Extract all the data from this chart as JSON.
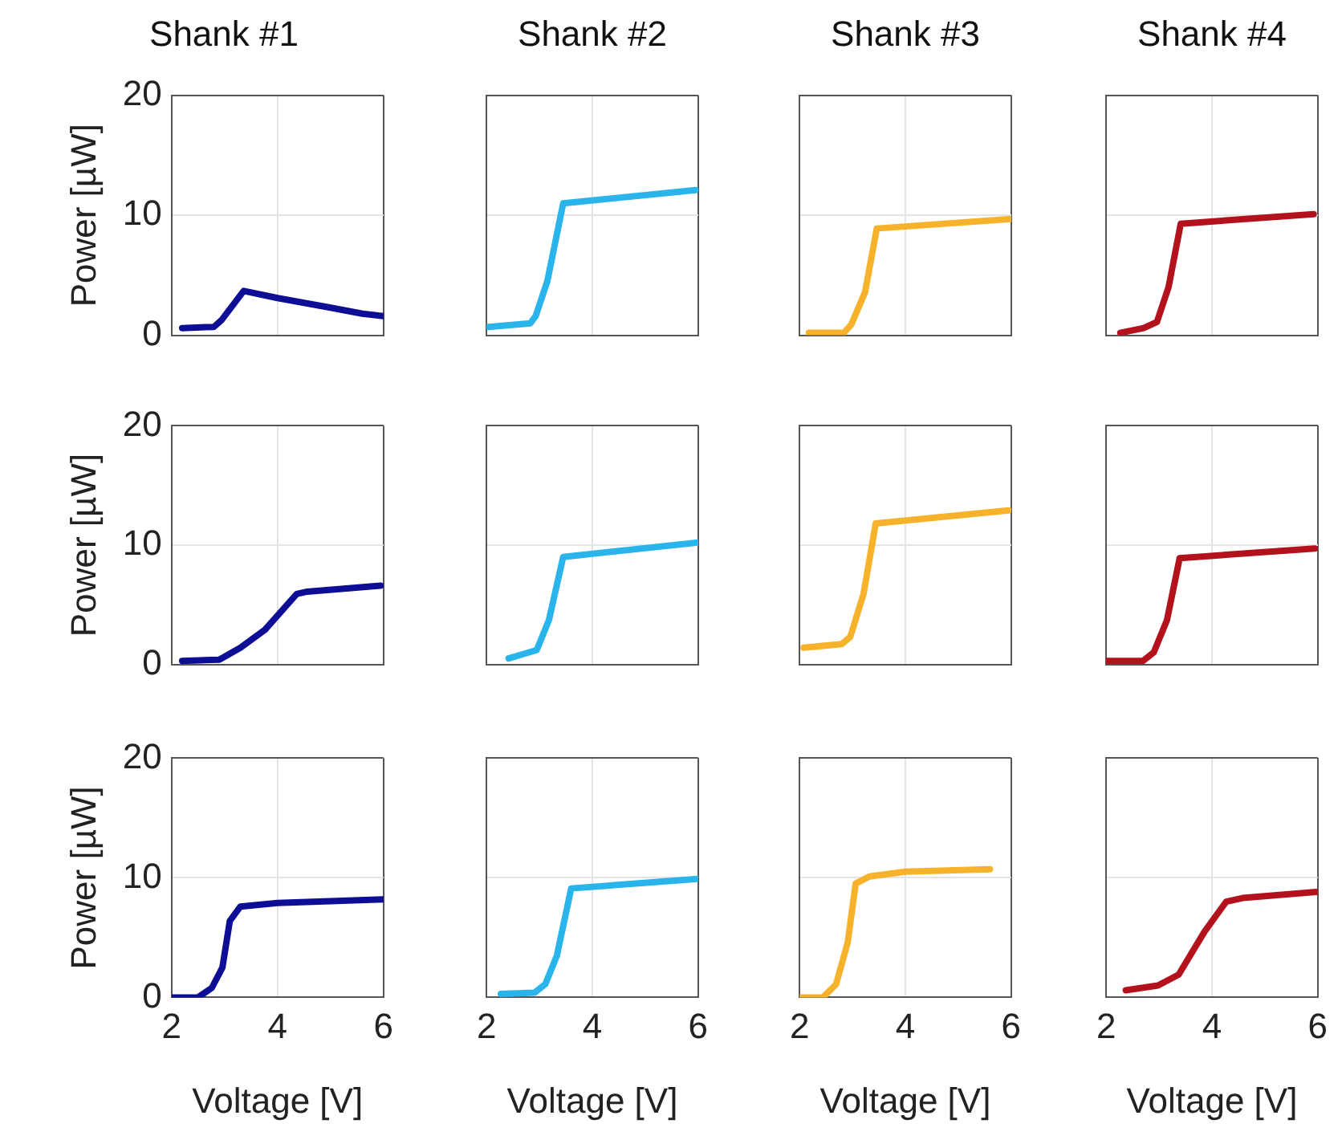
{
  "chart_data": [
    {
      "type": "line",
      "title": "Shank #1",
      "ylabel": "Power [µW]",
      "xlim": [
        2,
        6
      ],
      "ylim": [
        0,
        20
      ],
      "xticks": [
        2,
        4,
        6
      ],
      "yticks": [
        0,
        10,
        20
      ],
      "grid": true,
      "tick_labels": "y",
      "series": [
        {
          "color": "#0d0d96",
          "x": [
            2.2,
            2.8,
            2.95,
            3.36,
            4,
            5,
            5.6,
            6
          ],
          "values": [
            0.6,
            0.7,
            1.3,
            3.7,
            3.1,
            2.3,
            1.8,
            1.6
          ]
        }
      ]
    },
    {
      "type": "line",
      "title": "Shank #2",
      "xlim": [
        2,
        6
      ],
      "ylim": [
        0,
        20
      ],
      "xticks": [
        2,
        4,
        6
      ],
      "yticks": [
        0,
        10,
        20
      ],
      "grid": true,
      "tick_labels": false,
      "series": [
        {
          "color": "#2ab4ec",
          "x": [
            2.04,
            2.83,
            2.93,
            3.15,
            3.45,
            5.95
          ],
          "values": [
            0.7,
            1.0,
            1.6,
            4.5,
            11.0,
            12.1
          ]
        }
      ]
    },
    {
      "type": "line",
      "title": "Shank #3",
      "xlim": [
        2,
        6
      ],
      "ylim": [
        0,
        20
      ],
      "xticks": [
        2,
        4,
        6
      ],
      "yticks": [
        0,
        10,
        20
      ],
      "grid": true,
      "tick_labels": false,
      "series": [
        {
          "color": "#f7b22c",
          "x": [
            2.18,
            2.84,
            2.98,
            3.24,
            3.46,
            6
          ],
          "values": [
            0.2,
            0.2,
            0.9,
            3.6,
            8.9,
            9.7
          ]
        }
      ]
    },
    {
      "type": "line",
      "title": "Shank #4",
      "xlim": [
        2,
        6
      ],
      "ylim": [
        0,
        20
      ],
      "xticks": [
        2,
        4,
        6
      ],
      "yticks": [
        0,
        10,
        20
      ],
      "grid": true,
      "tick_labels": false,
      "series": [
        {
          "color": "#b3121d",
          "x": [
            2.27,
            2.71,
            2.96,
            3.18,
            3.41,
            5.92
          ],
          "values": [
            0.2,
            0.6,
            1.1,
            4.0,
            9.3,
            10.1
          ]
        }
      ]
    },
    {
      "type": "line",
      "ylabel": "Power [µW]",
      "xlim": [
        2,
        6
      ],
      "ylim": [
        0,
        20
      ],
      "xticks": [
        2,
        4,
        6
      ],
      "yticks": [
        0,
        10,
        20
      ],
      "grid": true,
      "tick_labels": "y",
      "series": [
        {
          "color": "#0d0d96",
          "x": [
            2.2,
            2.9,
            3.3,
            3.76,
            4.36,
            4.56,
            5.94
          ],
          "values": [
            0.3,
            0.4,
            1.4,
            2.9,
            5.9,
            6.1,
            6.6
          ]
        }
      ]
    },
    {
      "type": "line",
      "xlim": [
        2,
        6
      ],
      "ylim": [
        0,
        20
      ],
      "xticks": [
        2,
        4,
        6
      ],
      "yticks": [
        0,
        10,
        20
      ],
      "grid": true,
      "tick_labels": false,
      "series": [
        {
          "color": "#2ab4ec",
          "x": [
            2.42,
            2.95,
            3.18,
            3.45,
            6
          ],
          "values": [
            0.5,
            1.2,
            3.7,
            9.0,
            10.2
          ]
        }
      ]
    },
    {
      "type": "line",
      "xlim": [
        2,
        6
      ],
      "ylim": [
        0,
        20
      ],
      "xticks": [
        2,
        4,
        6
      ],
      "yticks": [
        0,
        10,
        20
      ],
      "grid": true,
      "tick_labels": false,
      "series": [
        {
          "color": "#f7b22c",
          "x": [
            2.08,
            2.8,
            2.96,
            3.21,
            3.44,
            5.95
          ],
          "values": [
            1.4,
            1.7,
            2.3,
            5.9,
            11.8,
            12.9
          ]
        }
      ]
    },
    {
      "type": "line",
      "xlim": [
        2,
        6
      ],
      "ylim": [
        0,
        20
      ],
      "xticks": [
        2,
        4,
        6
      ],
      "yticks": [
        0,
        10,
        20
      ],
      "grid": true,
      "tick_labels": false,
      "series": [
        {
          "color": "#b3121d",
          "x": [
            2.02,
            2.7,
            2.9,
            3.15,
            3.39,
            5.94
          ],
          "values": [
            0.3,
            0.3,
            1.0,
            3.7,
            8.9,
            9.7
          ]
        }
      ]
    },
    {
      "type": "line",
      "ylabel": "Power [µW]",
      "xlabel": "Voltage [V]",
      "xlim": [
        2,
        6
      ],
      "ylim": [
        0,
        20
      ],
      "xticks": [
        2,
        4,
        6
      ],
      "yticks": [
        0,
        10,
        20
      ],
      "grid": true,
      "series": [
        {
          "color": "#0d0d96",
          "x": [
            2.0,
            2.5,
            2.76,
            2.96,
            3.1,
            3.3,
            4.0,
            6.0
          ],
          "values": [
            0.0,
            0.0,
            0.8,
            2.5,
            6.4,
            7.6,
            7.9,
            8.2
          ]
        }
      ]
    },
    {
      "type": "line",
      "xlabel": "Voltage [V]",
      "xlim": [
        2,
        6
      ],
      "ylim": [
        0,
        20
      ],
      "xticks": [
        2,
        4,
        6
      ],
      "yticks": [
        0,
        10,
        20
      ],
      "grid": true,
      "tick_labels": "x",
      "series": [
        {
          "color": "#2ab4ec",
          "x": [
            2.27,
            2.91,
            3.11,
            3.33,
            3.6,
            6.0
          ],
          "values": [
            0.3,
            0.4,
            1.1,
            3.5,
            9.1,
            9.9
          ]
        }
      ]
    },
    {
      "type": "line",
      "xlabel": "Voltage [V]",
      "xlim": [
        2,
        6
      ],
      "ylim": [
        0,
        20
      ],
      "xticks": [
        2,
        4,
        6
      ],
      "yticks": [
        0,
        10,
        20
      ],
      "grid": true,
      "tick_labels": "x",
      "series": [
        {
          "color": "#f7b22c",
          "x": [
            2.0,
            2.44,
            2.69,
            2.91,
            3.06,
            3.32,
            4.0,
            5.6
          ],
          "values": [
            0.0,
            0.0,
            1.1,
            4.6,
            9.5,
            10.1,
            10.5,
            10.7
          ]
        }
      ]
    },
    {
      "type": "line",
      "xlabel": "Voltage [V]",
      "xlim": [
        2,
        6
      ],
      "ylim": [
        0,
        20
      ],
      "xticks": [
        2,
        4,
        6
      ],
      "yticks": [
        0,
        10,
        20
      ],
      "grid": true,
      "tick_labels": "x",
      "series": [
        {
          "color": "#b3121d",
          "x": [
            2.37,
            2.98,
            3.37,
            3.86,
            4.27,
            4.58,
            5.97
          ],
          "values": [
            0.6,
            1.0,
            1.9,
            5.5,
            8.0,
            8.3,
            8.8
          ]
        }
      ]
    }
  ]
}
